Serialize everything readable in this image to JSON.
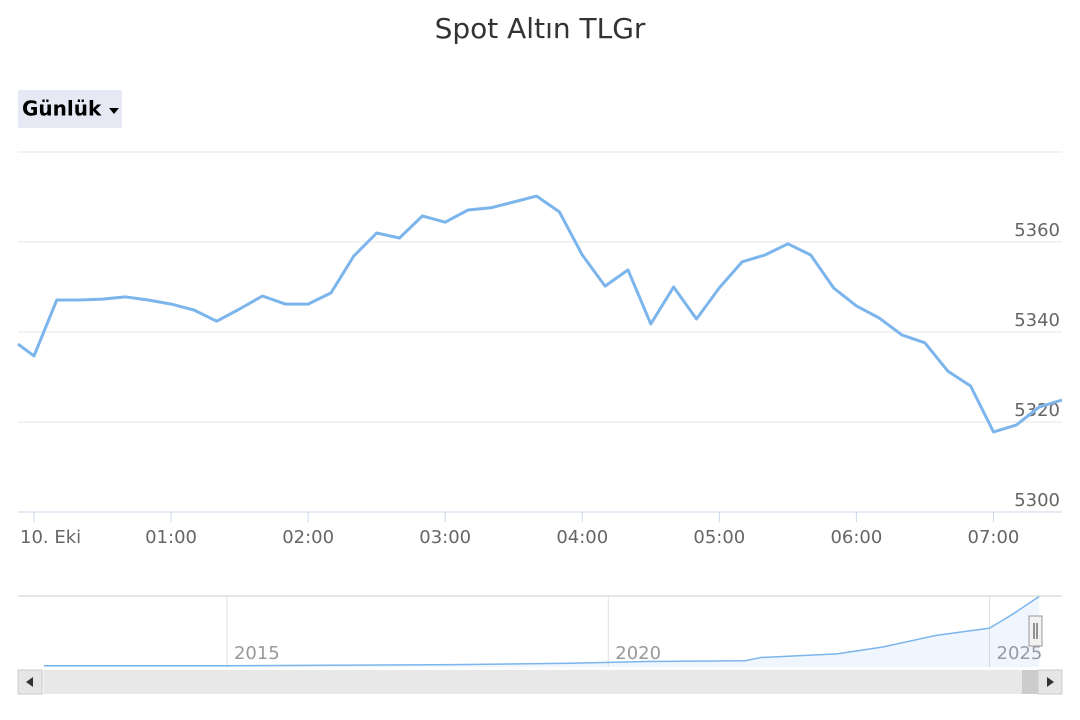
{
  "range_selector": {
    "label": "Günlük"
  },
  "chart_data": [
    {
      "type": "line",
      "title": "Spot Altın TLGr",
      "color": "#7cb5ec",
      "grid": true,
      "x": [
        -7,
        0,
        10,
        20,
        30,
        40,
        50,
        60,
        70,
        80,
        90,
        100,
        110,
        120,
        130,
        140,
        150,
        160,
        170,
        180,
        190,
        200,
        210,
        220,
        230,
        240,
        250,
        260,
        270,
        280,
        290,
        300,
        310,
        320,
        330,
        340,
        350,
        360,
        370,
        380,
        390,
        400,
        410,
        420,
        430,
        440,
        450
      ],
      "values": [
        5337.3,
        5334.7,
        5347.1,
        5347.1,
        5347.3,
        5347.8,
        5347.1,
        5346.2,
        5344.9,
        5342.4,
        5345.1,
        5348.0,
        5346.2,
        5346.2,
        5348.7,
        5356.9,
        5362.0,
        5360.9,
        5365.8,
        5364.4,
        5367.1,
        5367.6,
        5368.9,
        5370.2,
        5366.7,
        5357.1,
        5350.2,
        5353.8,
        5341.8,
        5350.0,
        5342.9,
        5349.8,
        5355.6,
        5357.1,
        5359.6,
        5357.1,
        5349.8,
        5345.8,
        5343.1,
        5339.3,
        5337.6,
        5331.3,
        5328.0,
        5317.8,
        5319.3,
        5323.3,
        5324.9
      ],
      "xlim": [
        -7,
        450
      ],
      "xticks": [
        {
          "value": 0,
          "label": "10. Eki"
        },
        {
          "value": 60,
          "label": "01:00"
        },
        {
          "value": 120,
          "label": "02:00"
        },
        {
          "value": 180,
          "label": "03:00"
        },
        {
          "value": 240,
          "label": "04:00"
        },
        {
          "value": 300,
          "label": "05:00"
        },
        {
          "value": 360,
          "label": "06:00"
        },
        {
          "value": 420,
          "label": "07:00"
        }
      ],
      "ylim": [
        5300,
        5380
      ],
      "yticks": [
        5300,
        5320,
        5340,
        5360
      ]
    },
    {
      "type": "area",
      "color": "#7cb5ec",
      "x": [
        2012.6,
        2015,
        2018,
        2019.5,
        2020.5,
        2021.8,
        2022,
        2023,
        2023.6,
        2024.3,
        2025,
        2025.3,
        2025.65
      ],
      "values": [
        95,
        100,
        180,
        280,
        420,
        480,
        720,
        1000,
        1520,
        2400,
        2960,
        4000,
        5360
      ],
      "xlim": [
        2012.26,
        2025.95
      ],
      "xticks": [
        2015,
        2020,
        2025
      ],
      "ylim": [
        0,
        5400
      ]
    }
  ]
}
